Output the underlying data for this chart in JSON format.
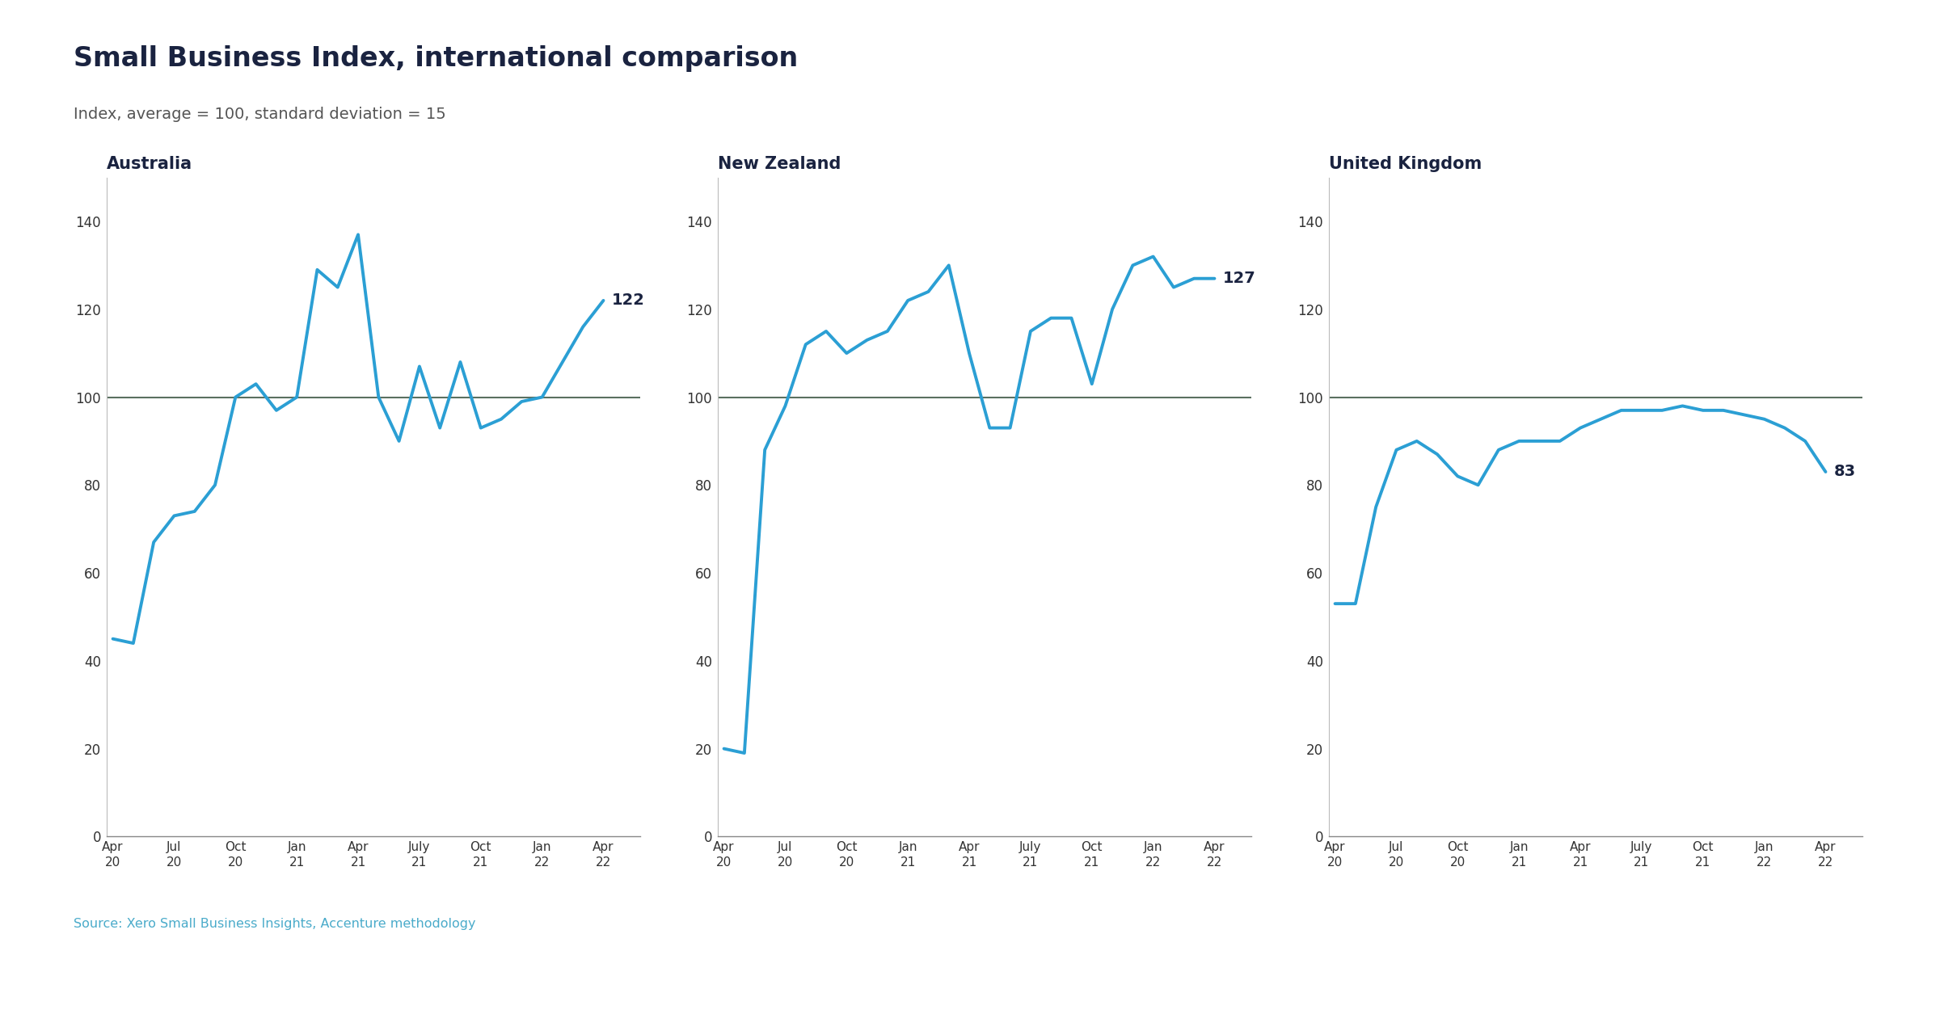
{
  "title": "Small Business Index, international comparison",
  "subtitle": "Index, average = 100, standard deviation = 15",
  "source": "Source: Xero Small Business Insights, Accenture methodology",
  "line_color": "#2b9fd4",
  "reference_line_color": "#5a7060",
  "background_color": "#ffffff",
  "title_color": "#1a2340",
  "subtitle_color": "#555555",
  "source_color": "#4aabca",
  "panels": [
    {
      "title": "Australia",
      "end_label": "122",
      "x_labels": [
        "Apr\n20",
        "Jul\n20",
        "Oct\n20",
        "Jan\n21",
        "Apr\n21",
        "July\n21",
        "Oct\n21",
        "Jan\n22",
        "Apr\n22"
      ],
      "x_positions": [
        0,
        3,
        6,
        9,
        12,
        15,
        18,
        21,
        24
      ],
      "data": [
        [
          0,
          45
        ],
        [
          1,
          44
        ],
        [
          2,
          67
        ],
        [
          3,
          73
        ],
        [
          4,
          74
        ],
        [
          5,
          80
        ],
        [
          6,
          100
        ],
        [
          7,
          103
        ],
        [
          8,
          97
        ],
        [
          9,
          100
        ],
        [
          10,
          129
        ],
        [
          11,
          125
        ],
        [
          12,
          137
        ],
        [
          13,
          100
        ],
        [
          14,
          90
        ],
        [
          15,
          107
        ],
        [
          16,
          93
        ],
        [
          17,
          108
        ],
        [
          18,
          93
        ],
        [
          19,
          95
        ],
        [
          20,
          99
        ],
        [
          21,
          100
        ],
        [
          22,
          108
        ],
        [
          23,
          116
        ],
        [
          24,
          122
        ]
      ]
    },
    {
      "title": "New Zealand",
      "end_label": "127",
      "x_labels": [
        "Apr\n20",
        "Jul\n20",
        "Oct\n20",
        "Jan\n21",
        "Apr\n21",
        "July\n21",
        "Oct\n21",
        "Jan\n22",
        "Apr\n22"
      ],
      "x_positions": [
        0,
        3,
        6,
        9,
        12,
        15,
        18,
        21,
        24
      ],
      "data": [
        [
          0,
          20
        ],
        [
          1,
          19
        ],
        [
          2,
          88
        ],
        [
          3,
          98
        ],
        [
          4,
          112
        ],
        [
          5,
          115
        ],
        [
          6,
          110
        ],
        [
          7,
          113
        ],
        [
          8,
          115
        ],
        [
          9,
          122
        ],
        [
          10,
          124
        ],
        [
          11,
          130
        ],
        [
          12,
          110
        ],
        [
          13,
          93
        ],
        [
          14,
          93
        ],
        [
          15,
          115
        ],
        [
          16,
          118
        ],
        [
          17,
          118
        ],
        [
          18,
          103
        ],
        [
          19,
          120
        ],
        [
          20,
          130
        ],
        [
          21,
          132
        ],
        [
          22,
          125
        ],
        [
          23,
          127
        ],
        [
          24,
          127
        ]
      ]
    },
    {
      "title": "United Kingdom",
      "end_label": "83",
      "x_labels": [
        "Apr\n20",
        "Jul\n20",
        "Oct\n20",
        "Jan\n21",
        "Apr\n21",
        "July\n21",
        "Oct\n21",
        "Jan\n22",
        "Apr\n22"
      ],
      "x_positions": [
        0,
        3,
        6,
        9,
        12,
        15,
        18,
        21,
        24
      ],
      "data": [
        [
          0,
          53
        ],
        [
          1,
          53
        ],
        [
          2,
          75
        ],
        [
          3,
          88
        ],
        [
          4,
          90
        ],
        [
          5,
          87
        ],
        [
          6,
          82
        ],
        [
          7,
          80
        ],
        [
          8,
          88
        ],
        [
          9,
          90
        ],
        [
          10,
          90
        ],
        [
          11,
          90
        ],
        [
          12,
          93
        ],
        [
          13,
          95
        ],
        [
          14,
          97
        ],
        [
          15,
          97
        ],
        [
          16,
          97
        ],
        [
          17,
          98
        ],
        [
          18,
          97
        ],
        [
          19,
          97
        ],
        [
          20,
          96
        ],
        [
          21,
          95
        ],
        [
          22,
          93
        ],
        [
          23,
          90
        ],
        [
          24,
          83
        ]
      ]
    }
  ],
  "ylim": [
    0,
    150
  ],
  "yticks": [
    0,
    20,
    40,
    60,
    80,
    100,
    120,
    140
  ]
}
